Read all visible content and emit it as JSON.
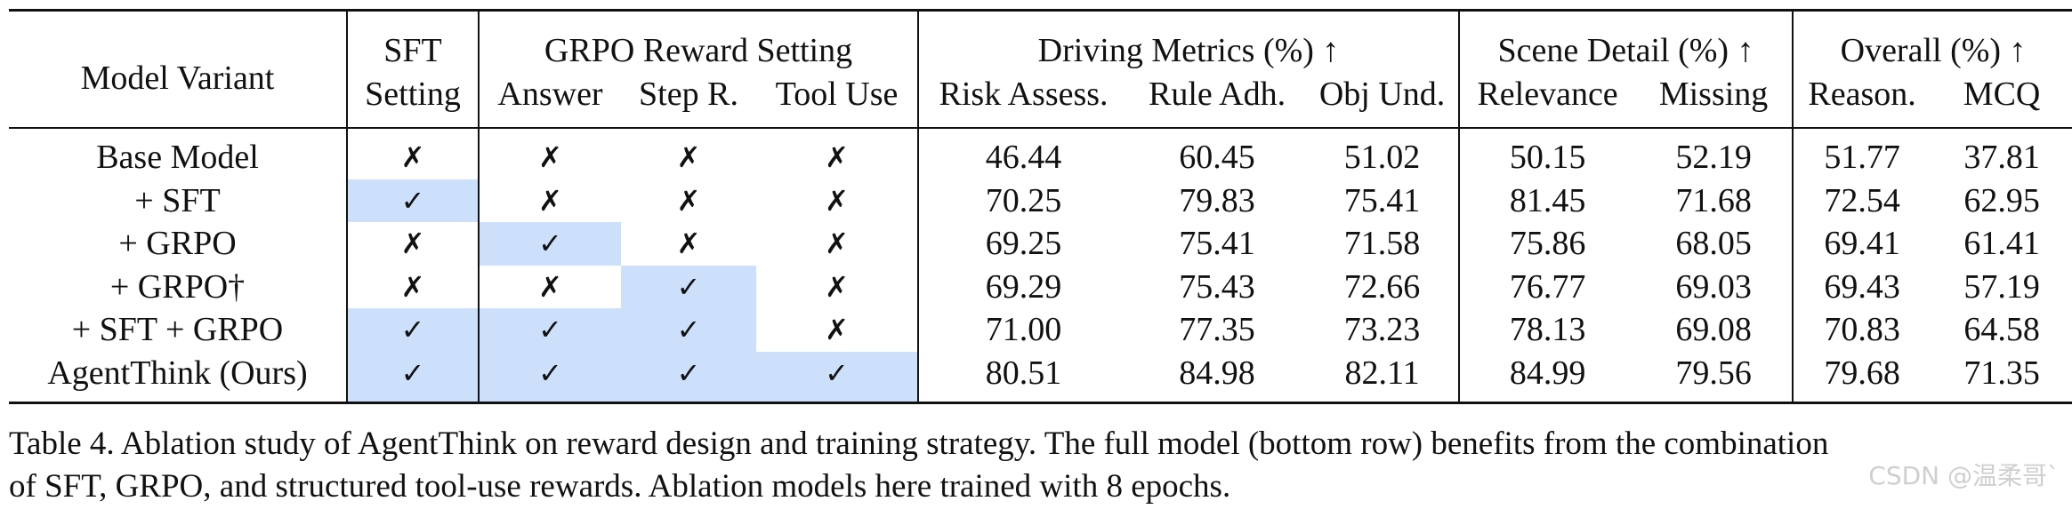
{
  "table": {
    "headers": {
      "model_variant": "Model Variant",
      "sft_line1": "SFT",
      "sft_line2": "Setting",
      "grpo_group": "GRPO Reward Setting",
      "answer": "Answer",
      "step_r": "Step R.",
      "tool_use": "Tool Use",
      "driving_group": "Driving Metrics (%) ↑",
      "risk_assess": "Risk Assess.",
      "rule_adh": "Rule Adh.",
      "obj_und": "Obj Und.",
      "scene_group": "Scene Detail (%) ↑",
      "relevance": "Relevance",
      "missing": "Missing",
      "overall_group": "Overall (%) ↑",
      "reason": "Reason.",
      "mcq": "MCQ"
    },
    "rows": [
      {
        "model": "Base Model",
        "sft": "✗",
        "answer": "✗",
        "step": "✗",
        "tool": "✗",
        "risk": "46.44",
        "rule": "60.45",
        "obj": "51.02",
        "relevance": "50.15",
        "missing": "52.19",
        "reason": "51.77",
        "mcq": "37.81"
      },
      {
        "model": "+ SFT",
        "sft": "✓",
        "answer": "✗",
        "step": "✗",
        "tool": "✗",
        "risk": "70.25",
        "rule": "79.83",
        "obj": "75.41",
        "relevance": "81.45",
        "missing": "71.68",
        "reason": "72.54",
        "mcq": "62.95"
      },
      {
        "model": "+ GRPO",
        "sft": "✗",
        "answer": "✓",
        "step": "✗",
        "tool": "✗",
        "risk": "69.25",
        "rule": "75.41",
        "obj": "71.58",
        "relevance": "75.86",
        "missing": "68.05",
        "reason": "69.41",
        "mcq": "61.41"
      },
      {
        "model": "+ GRPO†",
        "sft": "✗",
        "answer": "✗",
        "step": "✓",
        "tool": "✗",
        "risk": "69.29",
        "rule": "75.43",
        "obj": "72.66",
        "relevance": "76.77",
        "missing": "69.03",
        "reason": "69.43",
        "mcq": "57.19"
      },
      {
        "model": "+ SFT + GRPO",
        "sft": "✓",
        "answer": "✓",
        "step": "✓",
        "tool": "✗",
        "risk": "71.00",
        "rule": "77.35",
        "obj": "73.23",
        "relevance": "78.13",
        "missing": "69.08",
        "reason": "70.83",
        "mcq": "64.58"
      },
      {
        "model": "AgentThink (Ours)",
        "sft": "✓",
        "answer": "✓",
        "step": "✓",
        "tool": "✓",
        "risk": "80.51",
        "rule": "84.98",
        "obj": "82.11",
        "relevance": "84.99",
        "missing": "79.56",
        "reason": "79.68",
        "mcq": "71.35"
      }
    ]
  },
  "caption": {
    "line1": "Table 4. Ablation study of AgentThink on reward design and training strategy. The full model (bottom row) benefits from the combination",
    "line2": "of SFT, GRPO, and structured tool-use rewards. Ablation models here trained with 8 epochs."
  },
  "watermark": "CSDN @温柔哥`",
  "colors": {
    "highlight": "#cce0fb",
    "rule": "#111111"
  }
}
